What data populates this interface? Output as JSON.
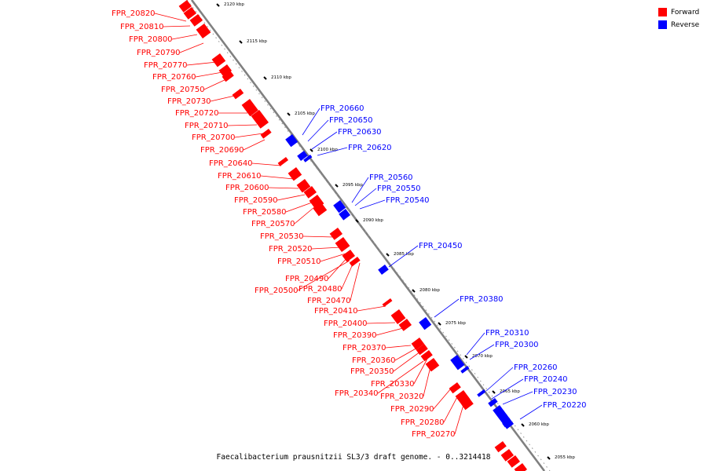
{
  "caption": "Faecalibacterium prausnitzii SL3/3 draft genome. - 0..3214418",
  "legend": [
    {
      "label": "Forward",
      "color": "#ff0000"
    },
    {
      "label": "Reverse",
      "color": "#0000ff"
    }
  ],
  "ticks": [
    "2120 kbp",
    "2115 kbp",
    "2110 kbp",
    "2105 kbp",
    "2100 kbp",
    "2095 kbp",
    "2090 kbp",
    "2085 kbp",
    "2080 kbp",
    "2075 kbp",
    "2070 kbp",
    "2065 kbp",
    "2060 kbp",
    "2055 kbp"
  ],
  "forward_genes": [
    "FPR_20820",
    "FPR_20810",
    "FPR_20800",
    "FPR_20790",
    "FPR_20770",
    "FPR_20760",
    "FPR_20750",
    "FPR_20730",
    "FPR_20720",
    "FPR_20710",
    "FPR_20700",
    "FPR_20690",
    "FPR_20640",
    "FPR_20610",
    "FPR_20600",
    "FPR_20590",
    "FPR_20580",
    "FPR_20570",
    "FPR_20530",
    "FPR_20520",
    "FPR_20510",
    "FPR_20490",
    "FPR_20500",
    "FPR_20480",
    "FPR_20470",
    "FPR_20410",
    "FPR_20400",
    "FPR_20390",
    "FPR_20370",
    "FPR_20360",
    "FPR_20350",
    "FPR_20330",
    "FPR_20340",
    "FPR_20320",
    "FPR_20290",
    "FPR_20280",
    "FPR_20270"
  ],
  "reverse_genes": [
    "FPR_20660",
    "FPR_20650",
    "FPR_20630",
    "FPR_20620",
    "FPR_20560",
    "FPR_20550",
    "FPR_20540",
    "FPR_20450",
    "FPR_20380",
    "FPR_20310",
    "FPR_20300",
    "FPR_20260",
    "FPR_20240",
    "FPR_20230",
    "FPR_20220"
  ]
}
